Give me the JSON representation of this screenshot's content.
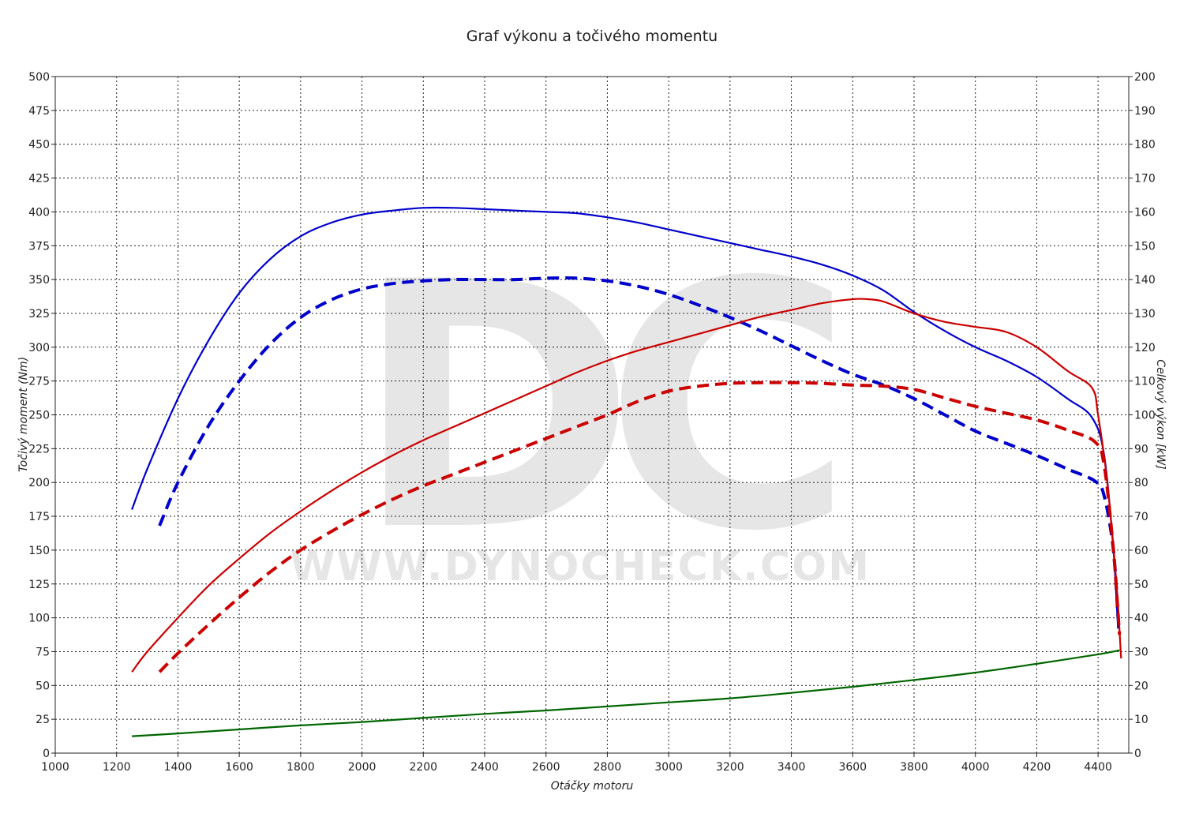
{
  "chart_data": {
    "type": "line",
    "title": "Graf výkonu a točivého momentu",
    "xlabel": "Otáčky motoru",
    "ylabel_left": "Točivý moment (Nm)",
    "ylabel_right": "Celkový výkon [kW]",
    "xlim": [
      1000,
      4500
    ],
    "ylim_left": [
      0,
      500
    ],
    "ylim_right": [
      0,
      200
    ],
    "x_ticks": [
      1000,
      1200,
      1400,
      1600,
      1800,
      2000,
      2200,
      2400,
      2600,
      2800,
      3000,
      3200,
      3400,
      3600,
      3800,
      4000,
      4200,
      4400
    ],
    "y_ticks_left": [
      0,
      25,
      50,
      75,
      100,
      125,
      150,
      175,
      200,
      225,
      250,
      275,
      300,
      325,
      350,
      375,
      400,
      425,
      450,
      475,
      500
    ],
    "y_ticks_right": [
      0,
      10,
      20,
      30,
      40,
      50,
      60,
      70,
      80,
      90,
      100,
      110,
      120,
      130,
      140,
      150,
      160,
      170,
      180,
      190,
      200
    ],
    "grid": true,
    "watermark": {
      "logo": "DC",
      "text": "WWW.DYNOCHECK.COM"
    },
    "series": [
      {
        "axis": "left",
        "color": "#0000cc",
        "style": "solid",
        "x": [
          1250,
          1300,
          1400,
          1500,
          1600,
          1700,
          1800,
          1900,
          2000,
          2100,
          2200,
          2300,
          2400,
          2500,
          2600,
          2700,
          2800,
          2900,
          3000,
          3100,
          3200,
          3300,
          3400,
          3500,
          3600,
          3700,
          3800,
          3900,
          4000,
          4100,
          4200,
          4300,
          4380,
          4420,
          4450,
          4465
        ],
        "values": [
          180,
          210,
          262,
          305,
          340,
          365,
          382,
          392,
          398,
          401,
          403,
          403,
          402,
          401,
          400,
          399,
          396,
          392,
          387,
          382,
          377,
          372,
          367,
          361,
          353,
          342,
          326,
          312,
          300,
          290,
          278,
          262,
          248,
          220,
          150,
          92
        ]
      },
      {
        "axis": "left",
        "color": "#0000cc",
        "style": "dashed",
        "x": [
          1340,
          1400,
          1500,
          1600,
          1700,
          1800,
          1900,
          2000,
          2100,
          2200,
          2300,
          2400,
          2500,
          2600,
          2700,
          2800,
          2900,
          3000,
          3100,
          3200,
          3300,
          3400,
          3500,
          3600,
          3700,
          3800,
          3900,
          4000,
          4100,
          4200,
          4300,
          4390,
          4420,
          4450,
          4465
        ],
        "values": [
          168,
          200,
          242,
          275,
          302,
          322,
          335,
          343,
          347,
          349,
          350,
          350,
          350,
          351,
          351,
          349,
          345,
          339,
          331,
          322,
          312,
          301,
          290,
          280,
          272,
          262,
          250,
          238,
          229,
          220,
          210,
          201,
          190,
          150,
          100
        ]
      },
      {
        "axis": "right",
        "color": "#cc0000",
        "style": "solid",
        "x": [
          1250,
          1300,
          1400,
          1500,
          1600,
          1700,
          1800,
          1900,
          2000,
          2100,
          2200,
          2300,
          2400,
          2500,
          2600,
          2700,
          2800,
          2900,
          3000,
          3100,
          3200,
          3300,
          3400,
          3500,
          3600,
          3650,
          3700,
          3800,
          3900,
          4000,
          4100,
          4200,
          4300,
          4380,
          4400,
          4430,
          4460,
          4475
        ],
        "values": [
          24,
          30,
          40,
          49.5,
          57.5,
          65,
          71.5,
          77.5,
          83,
          88,
          92.5,
          96.5,
          100.5,
          104.5,
          108.5,
          112.5,
          116,
          119,
          121.5,
          124,
          126.5,
          129,
          131,
          133,
          134.2,
          134.2,
          133.5,
          130,
          127.5,
          126,
          124.5,
          120,
          113,
          108,
          100,
          80,
          50,
          28
        ]
      },
      {
        "axis": "right",
        "color": "#cc0000",
        "style": "dashed",
        "x": [
          1340,
          1400,
          1500,
          1600,
          1700,
          1800,
          1900,
          2000,
          2100,
          2200,
          2300,
          2400,
          2500,
          2600,
          2700,
          2800,
          2900,
          3000,
          3100,
          3200,
          3300,
          3400,
          3500,
          3600,
          3700,
          3800,
          3900,
          4000,
          4100,
          4200,
          4300,
          4390,
          4420,
          4450,
          4470
        ],
        "values": [
          24,
          29.5,
          38,
          46,
          53.5,
          60,
          65.5,
          70.5,
          75,
          79,
          82.5,
          86,
          89.5,
          93,
          96.5,
          100,
          104,
          107,
          108.5,
          109.3,
          109.5,
          109.5,
          109.3,
          108.8,
          108.5,
          107.5,
          105,
          102.5,
          100.5,
          98.5,
          95.5,
          92,
          85,
          60,
          35
        ]
      },
      {
        "axis": "left",
        "color": "#006600",
        "style": "solid",
        "x": [
          1250,
          1400,
          1600,
          1800,
          2000,
          2200,
          2400,
          2600,
          2800,
          3000,
          3200,
          3400,
          3600,
          3800,
          4000,
          4200,
          4400,
          4470
        ],
        "values": [
          12.5,
          14.5,
          17.5,
          20.5,
          23,
          26,
          29,
          31.5,
          34.5,
          37.5,
          40.5,
          44.5,
          49,
          54,
          59.5,
          66,
          73,
          76
        ]
      }
    ]
  }
}
